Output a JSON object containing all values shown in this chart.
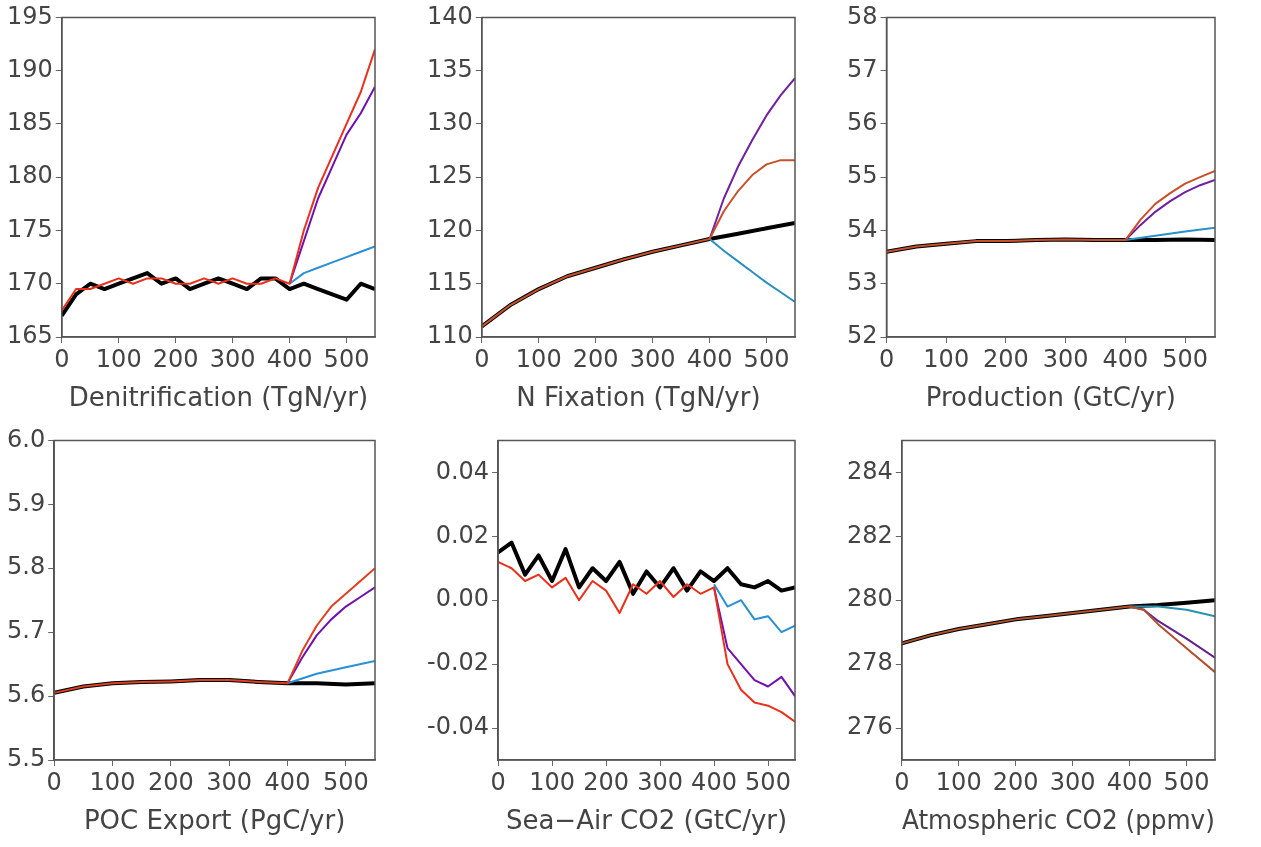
{
  "chart_data": [
    {
      "type": "line",
      "xlabel": "Denitrification (TgN/yr)",
      "xlim": [
        0,
        550
      ],
      "xticks": [
        0,
        100,
        200,
        300,
        400,
        500
      ],
      "ylim": [
        165,
        195
      ],
      "yticks": [
        165,
        170,
        175,
        180,
        185,
        190,
        195
      ],
      "grid": false,
      "series": [
        {
          "color": "#000000",
          "x": [
            0,
            25,
            50,
            75,
            100,
            125,
            150,
            175,
            200,
            225,
            250,
            275,
            300,
            325,
            350,
            375,
            400,
            425,
            450,
            475,
            500,
            525,
            550
          ],
          "values": [
            167,
            169,
            170,
            169.5,
            170,
            170.5,
            171,
            170,
            170.5,
            169.5,
            170,
            170.5,
            170,
            169.5,
            170.5,
            170.5,
            169.5,
            170,
            169.5,
            169,
            168.5,
            170,
            169.5
          ]
        },
        {
          "color": "#2a8fd6",
          "x": [
            400,
            425,
            450,
            475,
            500,
            525,
            550
          ],
          "values": [
            170,
            171,
            171.5,
            172,
            172.5,
            173,
            173.5
          ]
        },
        {
          "color": "#7010b0",
          "x": [
            400,
            425,
            450,
            475,
            500,
            525,
            550
          ],
          "values": [
            170,
            174,
            178,
            181,
            184,
            186,
            188.5
          ]
        },
        {
          "color": "#e8301a",
          "x": [
            0,
            25,
            50,
            75,
            100,
            125,
            150,
            175,
            200,
            225,
            250,
            275,
            300,
            325,
            350,
            375,
            400,
            425,
            450,
            475,
            500,
            525,
            550
          ],
          "values": [
            167.5,
            169.5,
            169.5,
            170,
            170.5,
            170,
            170.5,
            170.5,
            170,
            170,
            170.5,
            170,
            170.5,
            170,
            170,
            170.5,
            170,
            175,
            179,
            182,
            185,
            188,
            192
          ]
        }
      ]
    },
    {
      "type": "line",
      "xlabel": "N Fixation (TgN/yr)",
      "xlim": [
        0,
        550
      ],
      "xticks": [
        0,
        100,
        200,
        300,
        400,
        500
      ],
      "ylim": [
        110,
        140
      ],
      "yticks": [
        110,
        115,
        120,
        125,
        130,
        135,
        140
      ],
      "grid": false,
      "series": [
        {
          "color": "#000000",
          "x": [
            0,
            50,
            100,
            150,
            200,
            250,
            300,
            350,
            400,
            450,
            500,
            550
          ],
          "values": [
            111,
            113,
            114.5,
            115.7,
            116.5,
            117.3,
            118,
            118.6,
            119.2,
            119.7,
            120.2,
            120.7
          ]
        },
        {
          "color": "#2a90c0",
          "x": [
            400,
            425,
            450,
            475,
            500,
            525,
            550
          ],
          "values": [
            119.2,
            118.1,
            117.1,
            116.1,
            115.1,
            114.2,
            113.3
          ]
        },
        {
          "color": "#7020a0",
          "x": [
            400,
            425,
            450,
            475,
            500,
            525,
            550
          ],
          "values": [
            119.2,
            123,
            126,
            128.5,
            130.8,
            132.7,
            134.3
          ]
        },
        {
          "color": "#c8502a",
          "x": [
            0,
            50,
            100,
            150,
            200,
            250,
            300,
            350,
            400,
            425,
            450,
            475,
            500,
            525,
            550
          ],
          "values": [
            111,
            113,
            114.5,
            115.7,
            116.5,
            117.3,
            118,
            118.6,
            119.2,
            121.8,
            123.7,
            125.2,
            126.2,
            126.6,
            126.6
          ]
        }
      ]
    },
    {
      "type": "line",
      "xlabel": "Production (GtC/yr)",
      "xlim": [
        0,
        550
      ],
      "xticks": [
        0,
        100,
        200,
        300,
        400,
        500
      ],
      "ylim": [
        52,
        58
      ],
      "yticks": [
        52,
        53,
        54,
        55,
        56,
        57,
        58
      ],
      "grid": false,
      "series": [
        {
          "color": "#000000",
          "x": [
            0,
            50,
            100,
            150,
            200,
            250,
            300,
            350,
            400,
            450,
            500,
            550
          ],
          "values": [
            53.6,
            53.7,
            53.75,
            53.8,
            53.8,
            53.82,
            53.83,
            53.82,
            53.82,
            53.82,
            53.83,
            53.82
          ]
        },
        {
          "color": "#2a90c8",
          "x": [
            400,
            450,
            500,
            550
          ],
          "values": [
            53.82,
            53.9,
            53.98,
            54.05
          ]
        },
        {
          "color": "#7020a0",
          "x": [
            400,
            425,
            450,
            475,
            500,
            525,
            550
          ],
          "values": [
            53.82,
            54.1,
            54.35,
            54.55,
            54.72,
            54.85,
            54.95
          ]
        },
        {
          "color": "#c8502a",
          "x": [
            0,
            50,
            100,
            150,
            200,
            250,
            300,
            350,
            400,
            425,
            450,
            475,
            500,
            525,
            550
          ],
          "values": [
            53.6,
            53.7,
            53.75,
            53.8,
            53.8,
            53.82,
            53.83,
            53.82,
            53.82,
            54.2,
            54.5,
            54.7,
            54.88,
            55,
            55.12
          ]
        }
      ]
    },
    {
      "type": "line",
      "xlabel": "POC Export (PgC/yr)",
      "xlim": [
        0,
        550
      ],
      "xticks": [
        0,
        100,
        200,
        300,
        400,
        500
      ],
      "ylim": [
        5.5,
        6
      ],
      "yticks": [
        5.5,
        5.6,
        5.7,
        5.8,
        5.9,
        {
          "value": 6,
          "label": "6.0"
        }
      ],
      "grid": false,
      "series": [
        {
          "color": "#000000",
          "x": [
            0,
            50,
            100,
            150,
            200,
            250,
            300,
            350,
            400,
            450,
            500,
            550
          ],
          "values": [
            5.605,
            5.615,
            5.62,
            5.622,
            5.623,
            5.625,
            5.625,
            5.622,
            5.62,
            5.62,
            5.618,
            5.62
          ]
        },
        {
          "color": "#2a90d6",
          "x": [
            400,
            450,
            500,
            550
          ],
          "values": [
            5.62,
            5.635,
            5.645,
            5.655
          ]
        },
        {
          "color": "#7010b0",
          "x": [
            400,
            425,
            450,
            475,
            500,
            525,
            550
          ],
          "values": [
            5.62,
            5.66,
            5.695,
            5.72,
            5.74,
            5.755,
            5.77
          ]
        },
        {
          "color": "#e0401e",
          "x": [
            0,
            50,
            100,
            150,
            200,
            250,
            300,
            350,
            400,
            425,
            450,
            475,
            500,
            525,
            550
          ],
          "values": [
            5.605,
            5.615,
            5.62,
            5.622,
            5.623,
            5.625,
            5.625,
            5.622,
            5.62,
            5.67,
            5.71,
            5.74,
            5.76,
            5.78,
            5.8
          ]
        }
      ]
    },
    {
      "type": "line",
      "xlabel": "Sea−Air CO2 (GtC/yr)",
      "xlim": [
        0,
        550
      ],
      "xticks": [
        0,
        100,
        200,
        300,
        400,
        500
      ],
      "ylim": [
        -0.05,
        0.05
      ],
      "yticks": [
        -0.04,
        -0.02,
        {
          "value": 0,
          "label": "0.00"
        },
        0.02,
        0.04
      ],
      "grid": false,
      "series": [
        {
          "color": "#000000",
          "x": [
            0,
            25,
            50,
            75,
            100,
            125,
            150,
            175,
            200,
            225,
            250,
            275,
            300,
            325,
            350,
            375,
            400,
            425,
            450,
            475,
            500,
            525,
            550
          ],
          "values": [
            0.015,
            0.018,
            0.008,
            0.014,
            0.006,
            0.016,
            0.004,
            0.01,
            0.006,
            0.012,
            0.002,
            0.009,
            0.004,
            0.01,
            0.003,
            0.009,
            0.006,
            0.01,
            0.005,
            0.004,
            0.006,
            0.003,
            0.004
          ]
        },
        {
          "color": "#2a90d6",
          "x": [
            400,
            425,
            450,
            475,
            500,
            525,
            550
          ],
          "values": [
            0.005,
            -0.002,
            0,
            -0.006,
            -0.005,
            -0.01,
            -0.008
          ]
        },
        {
          "color": "#7010b0",
          "x": [
            400,
            425,
            450,
            475,
            500,
            525,
            550
          ],
          "values": [
            0.004,
            -0.015,
            -0.02,
            -0.025,
            -0.027,
            -0.024,
            -0.03
          ]
        },
        {
          "color": "#e8301a",
          "x": [
            0,
            25,
            50,
            75,
            100,
            125,
            150,
            175,
            200,
            225,
            250,
            275,
            300,
            325,
            350,
            375,
            400,
            425,
            450,
            475,
            500,
            525,
            550
          ],
          "values": [
            0.012,
            0.01,
            0.006,
            0.008,
            0.004,
            0.007,
            0,
            0.006,
            0.003,
            -0.004,
            0.005,
            0.002,
            0.006,
            0.001,
            0.005,
            0.002,
            0.004,
            -0.02,
            -0.028,
            -0.032,
            -0.033,
            -0.035,
            -0.038
          ]
        }
      ]
    },
    {
      "type": "line",
      "xlabel": "Atmospheric CO2 (ppmv)",
      "xlim": [
        0,
        550
      ],
      "xticks": [
        0,
        100,
        200,
        300,
        400,
        500
      ],
      "ylim": [
        275,
        285
      ],
      "yticks": [
        276,
        278,
        280,
        282,
        284
      ],
      "grid": false,
      "series": [
        {
          "color": "#000000",
          "x": [
            0,
            50,
            100,
            150,
            200,
            250,
            300,
            350,
            400,
            450,
            500,
            550
          ],
          "values": [
            278.65,
            278.9,
            279.1,
            279.25,
            279.4,
            279.5,
            279.6,
            279.7,
            279.8,
            279.85,
            279.92,
            280
          ]
        },
        {
          "color": "#2a90b0",
          "x": [
            400,
            450,
            500,
            550
          ],
          "values": [
            279.8,
            279.8,
            279.7,
            279.5
          ]
        },
        {
          "color": "#602090",
          "x": [
            400,
            425,
            450,
            500,
            550
          ],
          "values": [
            279.8,
            279.7,
            279.35,
            278.8,
            278.2
          ]
        },
        {
          "color": "#b0502a",
          "x": [
            0,
            50,
            100,
            150,
            200,
            250,
            300,
            350,
            400,
            425,
            450,
            500,
            550
          ],
          "values": [
            278.65,
            278.9,
            279.1,
            279.25,
            279.4,
            279.5,
            279.6,
            279.7,
            279.8,
            279.7,
            279.25,
            278.5,
            277.75
          ]
        }
      ]
    }
  ]
}
